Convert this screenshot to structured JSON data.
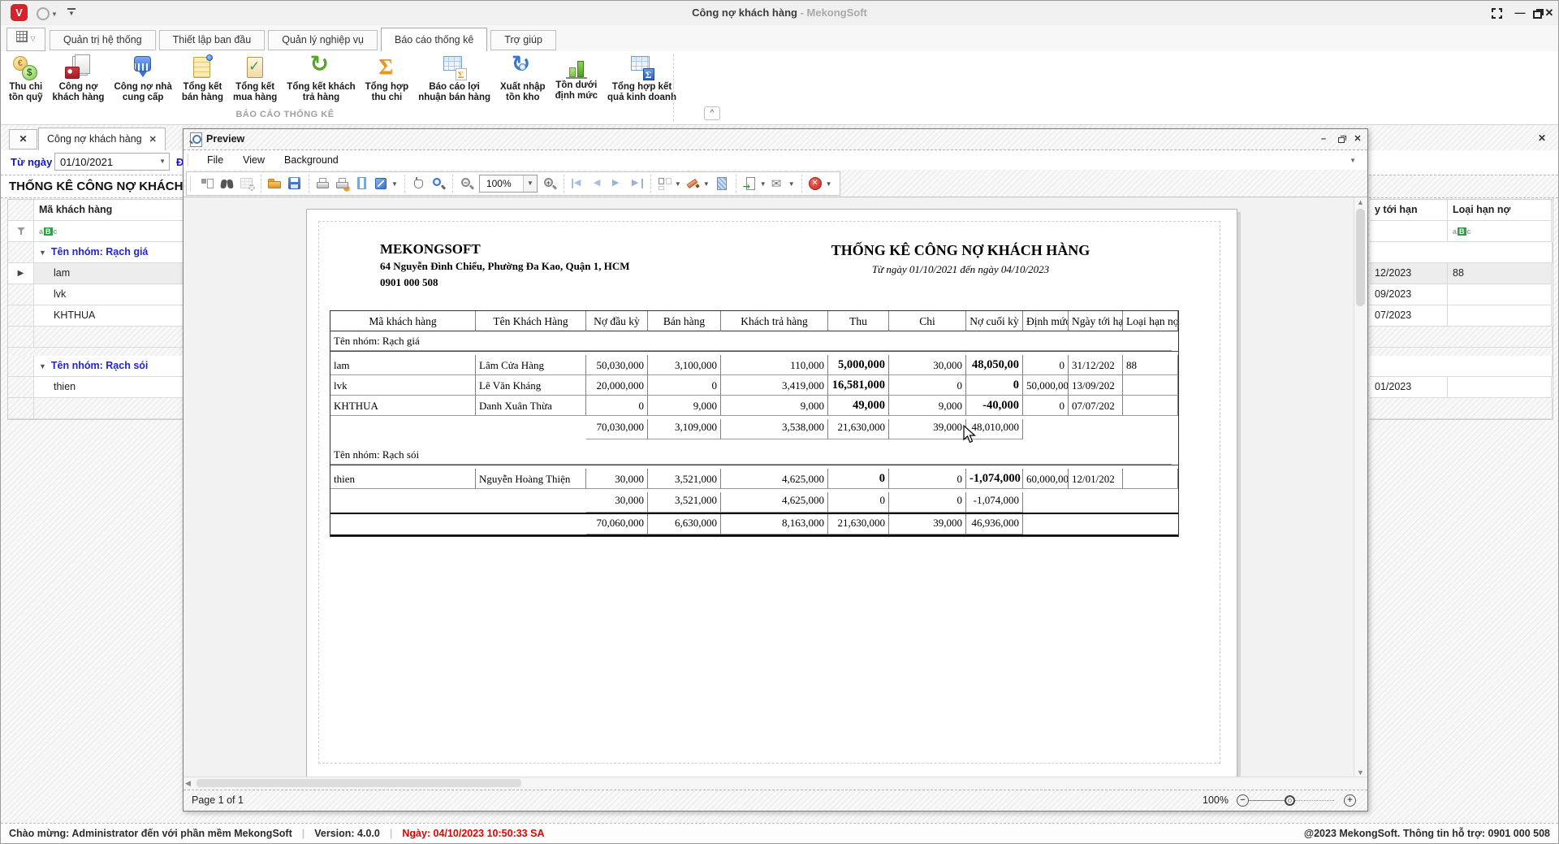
{
  "window": {
    "title": "Công nợ khách hàng",
    "title_suffix": " - MekongSoft",
    "logo_letter": "V"
  },
  "ribbon": {
    "tabs": [
      "Quản trị hệ thống",
      "Thiết lập ban đầu",
      "Quản lý nghiệp vụ",
      "Báo cáo thống kê",
      "Trợ giúp"
    ],
    "active_tab_index": 3,
    "group_label": "BÁO CÁO THỐNG KÊ",
    "items": [
      {
        "l1": "Thu chi",
        "l2": "tồn quỹ",
        "icon": "money"
      },
      {
        "l1": "Công nợ",
        "l2": "khách hàng",
        "icon": "customer-debt"
      },
      {
        "l1": "Công nợ nhà",
        "l2": "cung cấp",
        "icon": "supplier-debt"
      },
      {
        "l1": "Tổng kết",
        "l2": "bán hàng",
        "icon": "sales-note"
      },
      {
        "l1": "Tổng kết",
        "l2": "mua hàng",
        "icon": "purchase-clipboard"
      },
      {
        "l1": "Tổng kết khách",
        "l2": "trả hàng",
        "icon": "returns-arrow"
      },
      {
        "l1": "Tổng hợp",
        "l2": "thu chi",
        "icon": "sigma-orange"
      },
      {
        "l1": "Báo cáo lợi",
        "l2": "nhuận bán hàng",
        "icon": "table-sigma-orange"
      },
      {
        "l1": "Xuất nhập",
        "l2": "tồn kho",
        "icon": "inventory-cycle"
      },
      {
        "l1": "Tồn dưới",
        "l2": "định mức",
        "icon": "bar-chart"
      },
      {
        "l1": "Tổng hợp kết",
        "l2": "quả kinh doanh",
        "icon": "table-sigma-blue"
      }
    ]
  },
  "doc_tab": {
    "label": "Công nợ khách hàng"
  },
  "filters": {
    "from_label": "Từ ngày",
    "from_value": "01/10/2021",
    "to_label": "Đến ngày",
    "panel_title": "THỐNG KÊ CÔNG NỢ KHÁCH"
  },
  "grid": {
    "left_header": "Mã khách hàng",
    "right_headers": [
      "y tới hạn",
      "Loại hạn nợ"
    ],
    "groups": [
      {
        "label": "Tên nhóm: Rạch giá",
        "rows": [
          {
            "code": "lam",
            "right": [
              "12/2023",
              "88"
            ],
            "selected": true
          },
          {
            "code": "lvk",
            "right": [
              "09/2023",
              ""
            ],
            "selected": false
          },
          {
            "code": "KHTHUA",
            "right": [
              "07/2023",
              ""
            ],
            "selected": false
          }
        ]
      },
      {
        "label": "Tên nhóm: Rạch sói",
        "rows": [
          {
            "code": "thien",
            "right": [
              "01/2023",
              ""
            ],
            "selected": false
          }
        ]
      }
    ]
  },
  "preview": {
    "title": "Preview",
    "menus": [
      "File",
      "View",
      "Background"
    ],
    "zoom_value": "100%",
    "page_label": "Page 1 of 1",
    "status_zoom": "100%",
    "toolbar_icons": [
      "thumbnails",
      "search",
      "customize",
      "sep",
      "open",
      "save",
      "sep",
      "print",
      "print-quick",
      "page-setup",
      "scale dd",
      "sep",
      "hand",
      "magnifier",
      "sep",
      "zoom-out",
      "zoomcombo",
      "zoom-in",
      "sep",
      "page-first",
      "page-prev",
      "page-next",
      "page-last",
      "sep",
      "multipage dd",
      "watermark dd",
      "page-color",
      "sep",
      "export dd",
      "email dd",
      "sep",
      "close-red dd"
    ]
  },
  "report": {
    "company_name": "MEKONGSOFT",
    "company_address": "64 Nguyễn Đình Chiểu, Phường Đa Kao, Quận 1, HCM",
    "company_phone": "0901 000 508",
    "title": "THỐNG KÊ CÔNG NỢ KHÁCH HÀNG",
    "subtitle": "Từ ngày 01/10/2021 đến ngày 04/10/2023",
    "table": {
      "headers": [
        "Mã khách hàng",
        "Tên Khách Hàng",
        "Nợ đầu kỳ",
        "Bán hàng",
        "Khách trả hàng",
        "Thu",
        "Chi",
        "Nợ cuối kỳ",
        "Định mức n",
        "Ngày tới hạ",
        "Loại hạn nợ"
      ],
      "groups": [
        {
          "name": "Tên nhóm: Rạch giá",
          "rows": [
            [
              "lam",
              "Lâm Cửa Hàng",
              "50,030,000",
              "3,100,000",
              "110,000",
              "5,000,000",
              "30,000",
              "48,050,00",
              "0",
              "31/12/202",
              "88"
            ],
            [
              "lvk",
              "Lê Văn Kháng",
              "20,000,000",
              "0",
              "3,419,000",
              "16,581,000",
              "0",
              "0",
              "50,000,00",
              "13/09/202",
              ""
            ],
            [
              "KHTHUA",
              "Danh Xuân Thừa",
              "0",
              "9,000",
              "9,000",
              "49,000",
              "9,000",
              "-40,000",
              "0",
              "07/07/202",
              ""
            ]
          ],
          "subtotal": [
            "70,030,000",
            "3,109,000",
            "3,538,000",
            "21,630,000",
            "39,000",
            "48,010,000"
          ]
        },
        {
          "name": "Tên nhóm: Rạch sói",
          "rows": [
            [
              "thien",
              "Nguyễn Hoàng Thiện",
              "30,000",
              "3,521,000",
              "4,625,000",
              "0",
              "0",
              "-1,074,000",
              "60,000,00",
              "12/01/202",
              ""
            ]
          ],
          "subtotal": [
            "30,000",
            "3,521,000",
            "4,625,000",
            "0",
            "0",
            "-1,074,000"
          ]
        }
      ],
      "grand_total": [
        "70,060,000",
        "6,630,000",
        "8,163,000",
        "21,630,000",
        "39,000",
        "46,936,000"
      ]
    }
  },
  "status": {
    "welcome": "Chào mừng: Administrator đến với phần mềm MekongSoft",
    "version": "Version: 4.0.0",
    "datetime": "Ngày: 04/10/2023 10:50:33 SA",
    "support": "@2023 MekongSoft. Thông tin hỗ trợ: 0901 000 508"
  }
}
